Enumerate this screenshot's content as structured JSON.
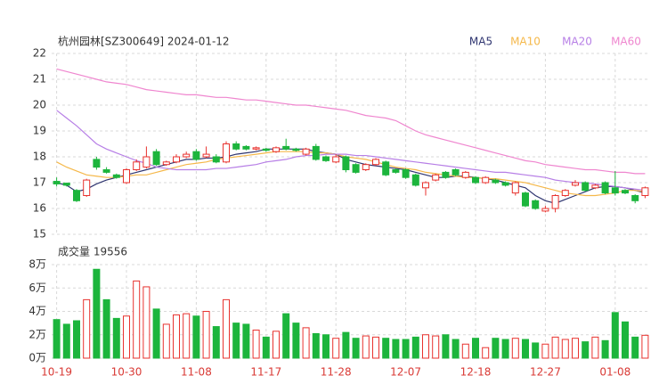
{
  "chart_data": [
    {
      "type": "candlestick",
      "title": "杭州园林[SZ300649] 2024-01-12",
      "open": [
        17.05,
        16.98,
        16.7,
        16.5,
        17.9,
        17.5,
        17.3,
        17.0,
        17.5,
        17.6,
        18.2,
        17.7,
        17.8,
        18.0,
        18.2,
        18.0,
        18.0,
        17.8,
        18.5,
        18.4,
        18.3,
        18.3,
        18.2,
        18.4,
        18.3,
        18.1,
        18.4,
        18.0,
        17.8,
        18.0,
        17.7,
        17.5,
        17.7,
        17.8,
        17.5,
        17.5,
        17.3,
        16.8,
        17.1,
        17.4,
        17.5,
        17.2,
        17.2,
        17.0,
        17.1,
        17.0,
        16.6,
        16.6,
        16.3,
        15.9,
        16.0,
        16.5,
        16.9,
        17.0,
        16.8,
        17.0,
        16.8,
        16.7,
        16.5,
        16.5
      ],
      "high": [
        17.2,
        17.0,
        16.75,
        17.15,
        18.0,
        17.6,
        17.35,
        17.55,
        17.9,
        18.4,
        18.3,
        17.85,
        18.1,
        18.2,
        18.3,
        18.4,
        18.1,
        18.6,
        18.6,
        18.45,
        18.4,
        18.35,
        18.4,
        18.7,
        18.35,
        18.35,
        18.5,
        18.05,
        18.1,
        18.05,
        17.75,
        17.75,
        17.95,
        17.85,
        17.55,
        17.55,
        17.35,
        17.05,
        17.35,
        17.45,
        17.55,
        17.45,
        17.25,
        17.25,
        17.15,
        17.05,
        17.05,
        16.65,
        16.35,
        16.1,
        16.55,
        16.75,
        17.1,
        17.05,
        16.95,
        17.05,
        17.45,
        16.75,
        16.55,
        16.85
      ],
      "low": [
        16.85,
        16.85,
        16.25,
        16.45,
        17.5,
        17.35,
        17.15,
        16.95,
        17.45,
        17.55,
        17.65,
        17.65,
        17.75,
        17.95,
        17.85,
        17.95,
        17.75,
        17.75,
        18.25,
        18.25,
        18.25,
        18.2,
        18.15,
        18.25,
        18.2,
        18.05,
        17.85,
        17.8,
        17.75,
        17.4,
        17.35,
        17.45,
        17.65,
        17.25,
        17.35,
        17.15,
        16.85,
        16.5,
        17.05,
        17.15,
        17.25,
        17.15,
        16.95,
        16.95,
        16.95,
        16.85,
        16.5,
        16.05,
        15.95,
        15.85,
        15.85,
        16.45,
        16.85,
        16.65,
        16.75,
        16.55,
        16.5,
        16.55,
        16.2,
        16.4
      ],
      "close": [
        16.95,
        16.9,
        16.3,
        17.1,
        17.6,
        17.4,
        17.2,
        17.5,
        17.8,
        18.0,
        17.7,
        17.8,
        18.0,
        18.1,
        17.9,
        18.1,
        17.8,
        18.5,
        18.3,
        18.3,
        18.35,
        18.25,
        18.35,
        18.3,
        18.25,
        18.3,
        17.9,
        17.85,
        18.0,
        17.5,
        17.4,
        17.7,
        17.9,
        17.3,
        17.4,
        17.2,
        16.9,
        17.0,
        17.3,
        17.2,
        17.3,
        17.4,
        17.0,
        17.2,
        17.0,
        16.9,
        17.0,
        16.1,
        16.0,
        16.0,
        16.5,
        16.7,
        17.0,
        16.7,
        16.9,
        16.6,
        16.6,
        16.6,
        16.3,
        16.8
      ],
      "up_color": "#e8322e",
      "down_color": "#1cb53c",
      "series": [
        {
          "name": "MA5",
          "color": "#2f3570",
          "values": [
            17.0,
            16.9,
            16.65,
            16.75,
            16.95,
            17.1,
            17.2,
            17.3,
            17.4,
            17.5,
            17.6,
            17.7,
            17.8,
            17.9,
            17.9,
            17.95,
            17.95,
            18.0,
            18.1,
            18.15,
            18.2,
            18.3,
            18.3,
            18.3,
            18.3,
            18.3,
            18.2,
            18.15,
            18.1,
            17.9,
            17.8,
            17.7,
            17.65,
            17.6,
            17.55,
            17.5,
            17.4,
            17.3,
            17.2,
            17.2,
            17.25,
            17.25,
            17.2,
            17.15,
            17.1,
            17.0,
            16.9,
            16.8,
            16.5,
            16.3,
            16.2,
            16.35,
            16.5,
            16.65,
            16.8,
            16.85,
            16.85,
            16.8,
            16.7,
            16.6
          ]
        },
        {
          "name": "MA10",
          "color": "#f5b84a",
          "values": [
            17.8,
            17.6,
            17.45,
            17.3,
            17.25,
            17.2,
            17.2,
            17.25,
            17.3,
            17.3,
            17.4,
            17.5,
            17.6,
            17.7,
            17.75,
            17.8,
            17.9,
            17.95,
            18.0,
            18.05,
            18.1,
            18.15,
            18.2,
            18.2,
            18.2,
            18.2,
            18.15,
            18.15,
            18.1,
            18.0,
            17.95,
            17.9,
            17.8,
            17.7,
            17.6,
            17.55,
            17.5,
            17.4,
            17.35,
            17.3,
            17.25,
            17.2,
            17.2,
            17.15,
            17.15,
            17.1,
            17.05,
            17.0,
            16.9,
            16.8,
            16.7,
            16.6,
            16.55,
            16.5,
            16.5,
            16.55,
            16.6,
            16.7,
            16.7,
            16.65
          ]
        },
        {
          "name": "MA20",
          "color": "#b77fe6",
          "values": [
            19.8,
            19.5,
            19.2,
            18.85,
            18.5,
            18.3,
            18.15,
            18.0,
            17.85,
            17.75,
            17.6,
            17.55,
            17.5,
            17.5,
            17.5,
            17.5,
            17.55,
            17.55,
            17.6,
            17.65,
            17.7,
            17.8,
            17.85,
            17.9,
            18.0,
            18.05,
            18.05,
            18.1,
            18.1,
            18.1,
            18.05,
            18.05,
            18.0,
            17.95,
            17.9,
            17.85,
            17.8,
            17.75,
            17.7,
            17.65,
            17.6,
            17.55,
            17.5,
            17.45,
            17.4,
            17.4,
            17.35,
            17.3,
            17.25,
            17.2,
            17.1,
            17.05,
            17.0,
            17.0,
            16.95,
            16.9,
            16.85,
            16.8,
            16.75,
            16.7
          ]
        },
        {
          "name": "MA60",
          "color": "#ef86cf",
          "values": [
            21.4,
            21.3,
            21.2,
            21.1,
            21.0,
            20.9,
            20.85,
            20.8,
            20.7,
            20.6,
            20.55,
            20.5,
            20.45,
            20.4,
            20.4,
            20.35,
            20.3,
            20.3,
            20.25,
            20.2,
            20.2,
            20.15,
            20.1,
            20.05,
            20.0,
            20.0,
            19.95,
            19.9,
            19.85,
            19.8,
            19.7,
            19.6,
            19.55,
            19.5,
            19.4,
            19.2,
            19.0,
            18.85,
            18.75,
            18.65,
            18.55,
            18.45,
            18.35,
            18.25,
            18.15,
            18.05,
            17.95,
            17.85,
            17.8,
            17.7,
            17.65,
            17.6,
            17.55,
            17.5,
            17.5,
            17.45,
            17.4,
            17.4,
            17.35,
            17.35
          ]
        }
      ],
      "ylim": [
        15,
        22
      ],
      "yticks": [
        15,
        16,
        17,
        18,
        19,
        20,
        21,
        22
      ],
      "grid": true,
      "legend": "top-right"
    },
    {
      "type": "bar",
      "title": "成交量 19556",
      "categories": [
        "10-19",
        null,
        null,
        null,
        null,
        null,
        null,
        "10-30",
        null,
        null,
        null,
        null,
        null,
        null,
        "11-08",
        null,
        null,
        null,
        null,
        null,
        null,
        "11-17",
        null,
        null,
        null,
        null,
        null,
        null,
        "11-28",
        null,
        null,
        null,
        null,
        null,
        null,
        "12-07",
        null,
        null,
        null,
        null,
        null,
        null,
        "12-18",
        null,
        null,
        null,
        null,
        null,
        null,
        "12-27",
        null,
        null,
        null,
        null,
        null,
        null,
        "01-08",
        null,
        null,
        null
      ],
      "values": [
        33000,
        29000,
        32000,
        50000,
        76000,
        50000,
        34000,
        36000,
        66000,
        61000,
        42000,
        29000,
        37000,
        38000,
        36000,
        40000,
        27000,
        50000,
        30000,
        29000,
        24000,
        18000,
        23000,
        38000,
        30000,
        26000,
        21000,
        20000,
        17000,
        22000,
        17000,
        19000,
        18000,
        17000,
        16000,
        16000,
        18000,
        20000,
        19000,
        20000,
        16000,
        12000,
        17000,
        9000,
        17000,
        16000,
        17000,
        16000,
        13000,
        12000,
        18000,
        16000,
        17000,
        14000,
        18000,
        15000,
        39000,
        31000,
        18000,
        19556
      ],
      "ylim": [
        0,
        80000
      ],
      "yticks": [
        {
          "value": 0,
          "label": "0万"
        },
        {
          "value": 20000,
          "label": "2万"
        },
        {
          "value": 40000,
          "label": "4万"
        },
        {
          "value": 60000,
          "label": "6万"
        },
        {
          "value": 80000,
          "label": "8万"
        }
      ],
      "grid": true
    }
  ]
}
